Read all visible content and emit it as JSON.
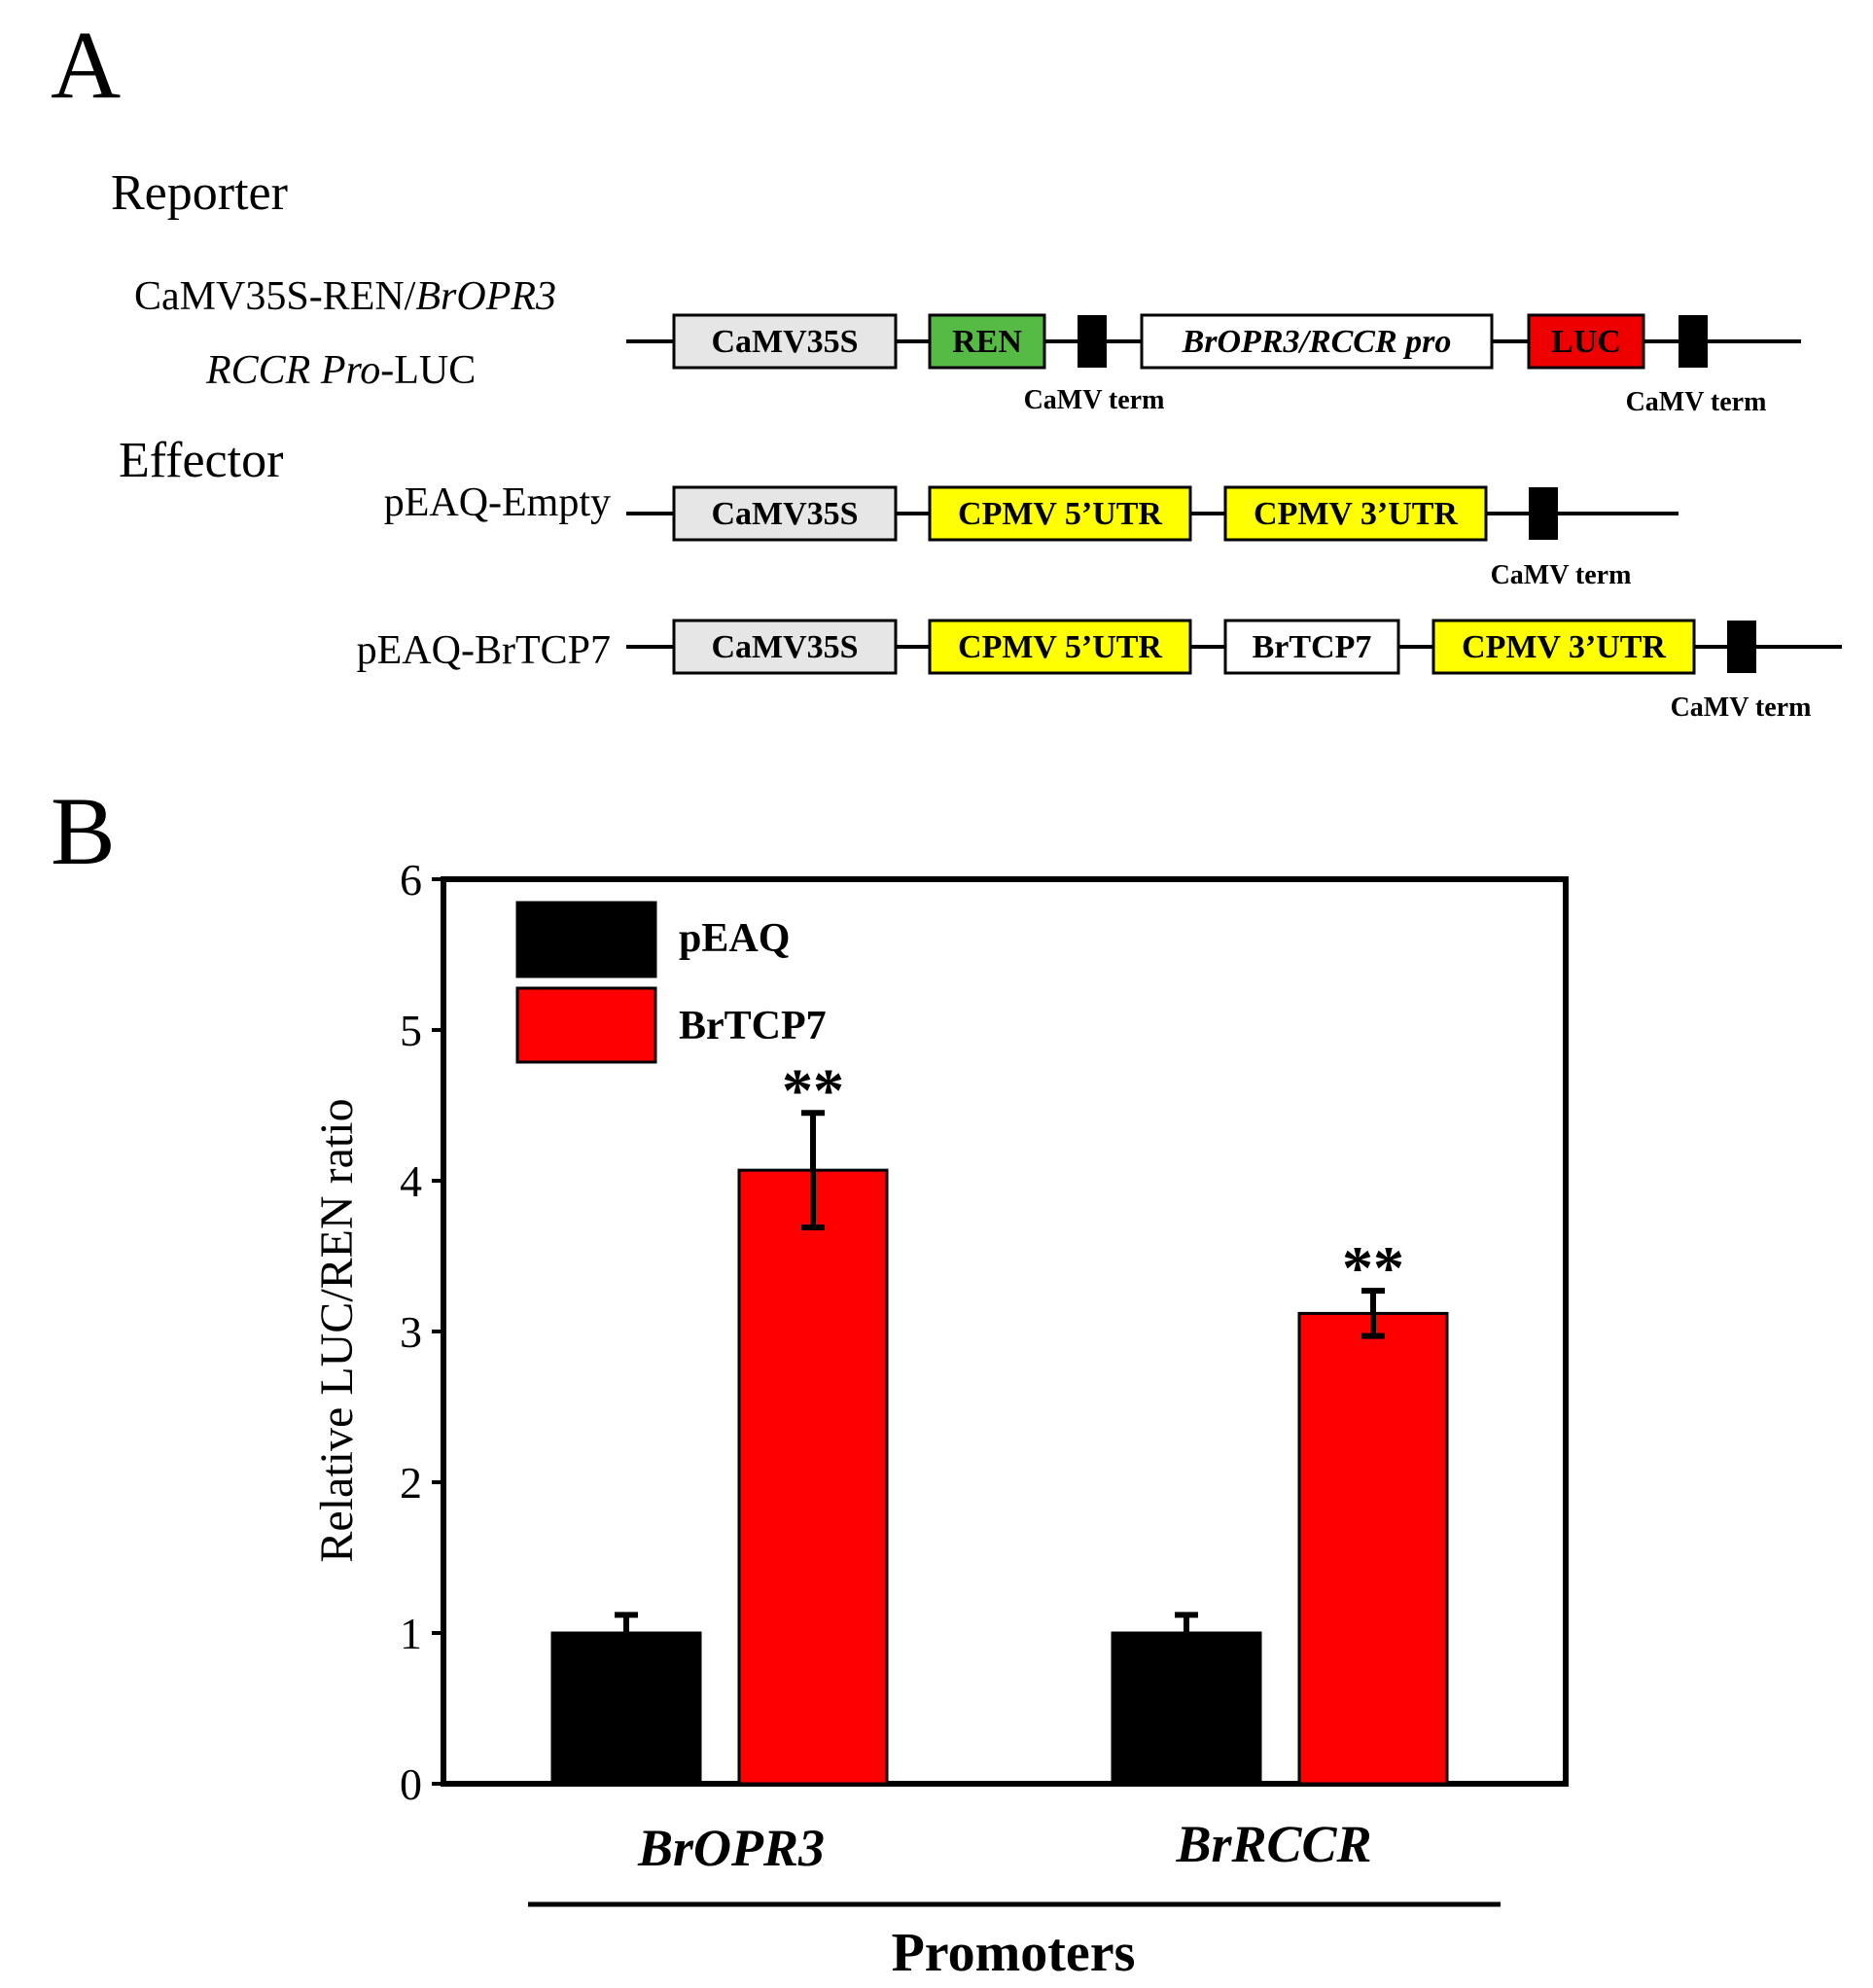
{
  "panel_a": {
    "label": "A",
    "reporter_heading": "Reporter",
    "reporter": {
      "name_line1_prefix": "CaMV35S-REN/",
      "name_line1_italic": "BrOPR3",
      "name_line2_italic": "RCCR Pro",
      "name_line2_suffix": "-LUC",
      "elements": [
        "CaMV35S",
        "REN",
        "BrOPR3/RCCR pro",
        "LUC"
      ],
      "term_labels": [
        "CaMV term",
        "CaMV term"
      ]
    },
    "effector_heading": "Effector",
    "effectors": [
      {
        "name": "pEAQ-Empty",
        "elements": [
          "CaMV35S",
          "CPMV 5’UTR",
          "CPMV 3’UTR"
        ],
        "term_label": "CaMV term"
      },
      {
        "name": "pEAQ-BrTCP7",
        "elements": [
          "CaMV35S",
          "CPMV 5’UTR",
          "BrTCP7",
          "CPMV 3’UTR"
        ],
        "term_label": "CaMV term"
      }
    ],
    "colors": {
      "camv35s": "#e6e6e6",
      "ren": "#55bb44",
      "luc": "#ee0000",
      "cpmv": "#ffff00",
      "plain": "#ffffff",
      "term": "#000000"
    }
  },
  "panel_b": {
    "label": "B"
  },
  "chart_data": {
    "type": "bar",
    "categories": [
      "BrOPR3",
      "BrRCCR"
    ],
    "series": [
      {
        "name": "pEAQ",
        "color": "#000000",
        "values": [
          1.0,
          1.0
        ],
        "errors": [
          0.12,
          0.12
        ]
      },
      {
        "name": "BrTCP7",
        "color": "#ff0000",
        "values": [
          4.07,
          3.12
        ],
        "errors": [
          0.38,
          0.15
        ]
      }
    ],
    "significance": [
      {
        "category": "BrOPR3",
        "series": "BrTCP7",
        "label": "**"
      },
      {
        "category": "BrRCCR",
        "series": "BrTCP7",
        "label": "**"
      }
    ],
    "ylabel": "Relative LUC/REN ratio",
    "xlabel": "Promoters",
    "ylim": [
      0,
      6
    ],
    "yticks": [
      "0",
      "1",
      "2",
      "3",
      "4",
      "5",
      "6"
    ],
    "grid": false,
    "legend": "top-left"
  }
}
